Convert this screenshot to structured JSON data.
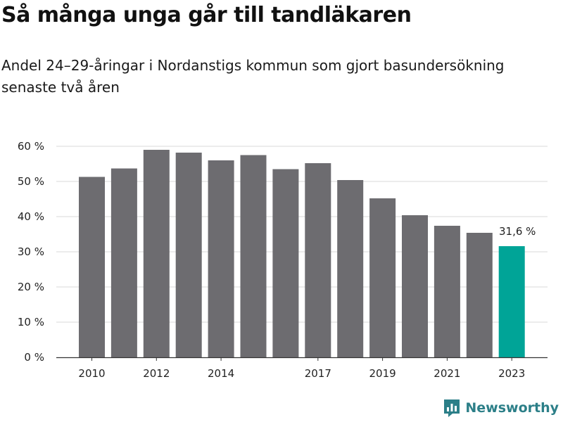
{
  "title": "Så många unga går till tandläkaren",
  "subtitle": "Andel 24–29-åringar i Nordanstigs kommun som gjort basundersökning senaste två åren",
  "brand": {
    "name": "Newsworthy",
    "logo_icon": "newsworthy-bar-chart-logo-icon"
  },
  "colors": {
    "bar": "#6d6c70",
    "highlight": "#00a497",
    "grid": "#d9d9d9",
    "axis": "#333333"
  },
  "chart_data": {
    "type": "bar",
    "categories": [
      "2010",
      "2011",
      "2012",
      "2013",
      "2014",
      "2015",
      "2016",
      "2017",
      "2018",
      "2019",
      "2020",
      "2021",
      "2022",
      "2023"
    ],
    "values": [
      51.3,
      53.7,
      59.0,
      58.2,
      56.0,
      57.5,
      53.5,
      55.2,
      50.4,
      45.2,
      40.4,
      37.4,
      35.4,
      31.6
    ],
    "highlight_index": 13,
    "y_ticks": [
      0,
      10,
      20,
      30,
      40,
      50,
      60
    ],
    "y_tick_labels": [
      "0 %",
      "10 %",
      "20 %",
      "30 %",
      "40 %",
      "50 %",
      "60 %"
    ],
    "x_tick_labels": [
      {
        "category": "2010",
        "label": "2010"
      },
      {
        "category": "2012",
        "label": "2012"
      },
      {
        "category": "2014",
        "label": "2014"
      },
      {
        "category": "2017",
        "label": "2017"
      },
      {
        "category": "2019",
        "label": "2019"
      },
      {
        "category": "2021",
        "label": "2021"
      },
      {
        "category": "2023",
        "label": "2023"
      }
    ],
    "annotation": {
      "category": "2023",
      "label": "31,6 %"
    },
    "ylim": [
      0,
      62
    ],
    "xlabel": "",
    "ylabel": "",
    "grid": true,
    "legend": "none"
  }
}
